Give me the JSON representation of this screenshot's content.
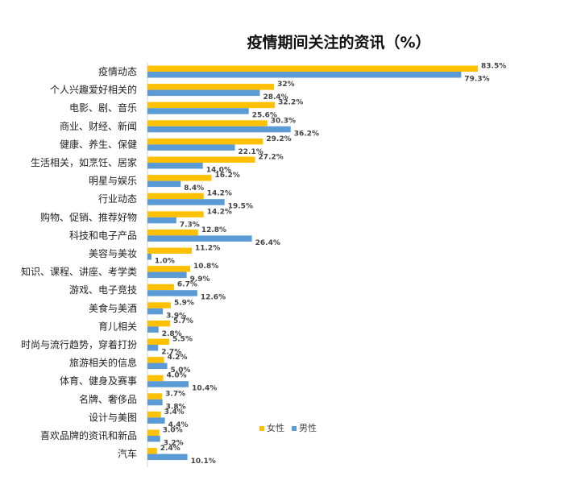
{
  "chart_data": {
    "type": "bar",
    "orientation": "horizontal",
    "title": "疫情期间关注的资讯（%）",
    "categories": [
      "疫情动态",
      "个人兴趣爱好相关的",
      "电影、剧、音乐",
      "商业、财经、新闻",
      "健康、养生、保健",
      "生活相关，如烹饪、居家",
      "明星与娱乐",
      "行业动态",
      "购物、促销、推荐好物",
      "科技和电子产品",
      "美容与美妆",
      "知识、课程、讲座、考学类",
      "游戏、电子竞技",
      "美食与美酒",
      "育儿相关",
      "时尚与流行趋势，穿着打扮",
      "旅游相关的信息",
      "体育、健身及赛事",
      "名牌、奢侈品",
      "设计与美图",
      "喜欢品牌的资讯和新品",
      "汽车"
    ],
    "series": [
      {
        "name": "女性",
        "color": "#FFC000",
        "values": [
          83.5,
          32,
          32.2,
          30.3,
          29.2,
          27.2,
          16.2,
          14.2,
          14.2,
          12.8,
          11.2,
          10.8,
          6.7,
          5.9,
          5.7,
          5.5,
          4.2,
          4.0,
          3.7,
          3.4,
          3.0,
          2.4
        ],
        "labels": [
          "83.5%",
          "32%",
          "32.2%",
          "30.3%",
          "29.2%",
          "27.2%",
          "16.2%",
          "14.2%",
          "14.2%",
          "12.8%",
          "11.2%",
          "10.8%",
          "6.7%",
          "5.9%",
          "5.7%",
          "5.5%",
          "4.2%",
          "4.0%",
          "3.7%",
          "3.4%",
          "3.0%",
          "2.4%"
        ]
      },
      {
        "name": "男性",
        "color": "#5B9BD5",
        "values": [
          79.3,
          28.4,
          25.6,
          36.2,
          22.1,
          14.0,
          8.4,
          19.5,
          7.3,
          26.4,
          1.0,
          9.9,
          12.6,
          3.9,
          2.8,
          2.7,
          5.0,
          10.4,
          3.8,
          4.4,
          3.2,
          10.1
        ],
        "labels": [
          "79.3%",
          "28.4%",
          "25.6%",
          "36.2%",
          "22.1%",
          "14.0%",
          "8.4%",
          "19.5%",
          "7.3%",
          "26.4%",
          "1.0%",
          "9.9%",
          "12.6%",
          "3.9%",
          "2.8%",
          "2.7%",
          "5.0%",
          "10.4%",
          "3.8%",
          "4.4%",
          "3.2%",
          "10.1%"
        ]
      }
    ],
    "xlim": [
      0,
      100
    ],
    "grid": false,
    "legend_position": "bottom-right"
  }
}
